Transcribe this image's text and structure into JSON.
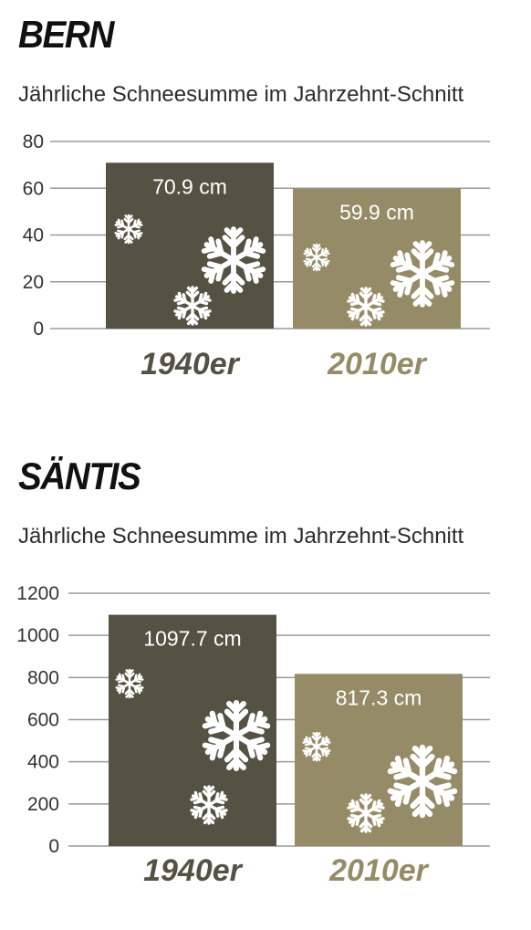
{
  "colors": {
    "bar_1940": "#555143",
    "bar_2010": "#958c67",
    "grid": "#9a9a9a",
    "snowflake": "#ffffff"
  },
  "chart_data": [
    {
      "type": "bar",
      "title": "BERN",
      "subtitle": "Jährliche Schneesumme im Jahrzehnt-Schnitt",
      "categories": [
        "1940er",
        "2010er"
      ],
      "values": [
        70.9,
        59.9
      ],
      "value_labels": [
        "70.9 cm",
        "59.9 cm"
      ],
      "yticks": [
        "0",
        "20",
        "40",
        "60",
        "80"
      ],
      "ylim": [
        0,
        80
      ],
      "grid": true,
      "icons": [
        "snowflake-icon"
      ]
    },
    {
      "type": "bar",
      "title": "SÄNTIS",
      "subtitle": "Jährliche Schneesumme im Jahrzehnt-Schnitt",
      "categories": [
        "1940er",
        "2010er"
      ],
      "values": [
        1097.7,
        817.3
      ],
      "value_labels": [
        "1097.7 cm",
        "817.3 cm"
      ],
      "yticks": [
        "0",
        "200",
        "400",
        "600",
        "800",
        "1000",
        "1200"
      ],
      "ylim": [
        0,
        1200
      ],
      "grid": true,
      "icons": [
        "snowflake-icon"
      ]
    }
  ]
}
